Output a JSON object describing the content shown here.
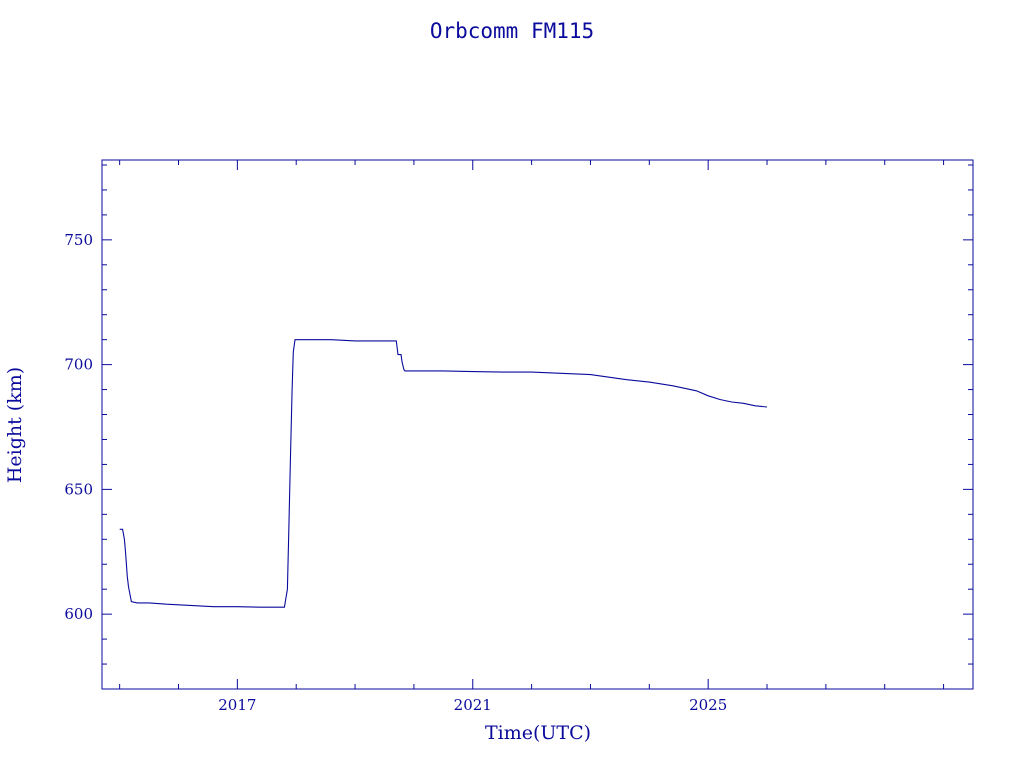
{
  "chart_data": {
    "type": "line",
    "title": "Orbcomm FM115",
    "xlabel": "Time(UTC)",
    "ylabel": "Height (km)",
    "xlim": [
      2014.7,
      2029.5
    ],
    "ylim": [
      570,
      782
    ],
    "x_ticks": [
      2017,
      2021,
      2025
    ],
    "y_ticks": [
      600,
      650,
      700,
      750
    ],
    "x_minor_step": 1,
    "y_minor_step": 10,
    "grid": false,
    "color": "#0a0a9c",
    "series": [
      {
        "x": [
          2015.0,
          2015.05,
          2015.08,
          2015.1,
          2015.13,
          2015.15,
          2015.2,
          2015.3,
          2015.5,
          2015.8,
          2016.2,
          2016.6,
          2017.0,
          2017.4,
          2017.8,
          2017.85,
          2017.87,
          2017.9,
          2017.93,
          2017.95,
          2017.98,
          2018.0,
          2018.2,
          2018.6,
          2019.0,
          2019.35,
          2019.7,
          2019.73,
          2019.78,
          2019.8,
          2019.83,
          2019.85,
          2020.0,
          2020.5,
          2021.0,
          2021.5,
          2022.0,
          2022.5,
          2023.0,
          2023.3,
          2023.6,
          2024.0,
          2024.4,
          2024.8,
          2025.0,
          2025.2,
          2025.4,
          2025.6,
          2025.8,
          2026.0
        ],
        "y": [
          634,
          634,
          630,
          625,
          615,
          611,
          605,
          604.5,
          604.5,
          604,
          603.5,
          603,
          603,
          602.8,
          602.8,
          610,
          630,
          660,
          690,
          705,
          710,
          710,
          710,
          710,
          709.5,
          709.5,
          709.5,
          704,
          704,
          701,
          698,
          697.5,
          697.5,
          697.5,
          697.2,
          697,
          697,
          696.5,
          696,
          695,
          694,
          693,
          691.5,
          689.5,
          687.5,
          686,
          685,
          684.5,
          683.5,
          683
        ]
      }
    ]
  }
}
